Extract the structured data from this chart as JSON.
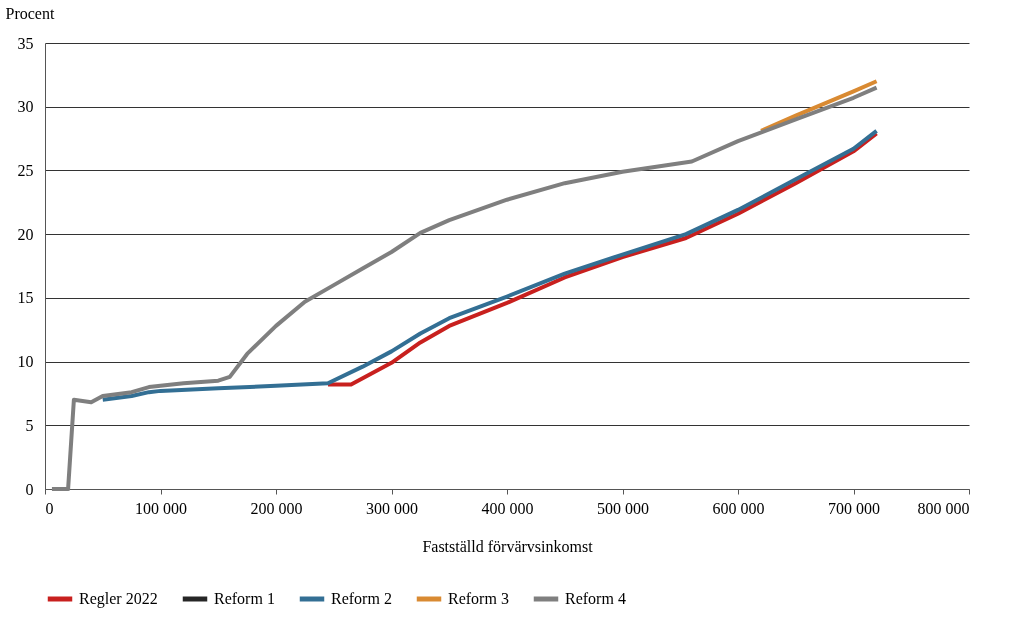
{
  "chart_data": {
    "type": "line",
    "ylabel": "Procent",
    "xlabel": "Fastställd förvärvsinkomst",
    "xlim": [
      0,
      800000
    ],
    "ylim": [
      0,
      35
    ],
    "xticks": [
      0,
      {
        "value": 100000,
        "label": "100 000"
      },
      {
        "value": 200000,
        "label": "200 000"
      },
      {
        "value": 300000,
        "label": "300 000"
      },
      {
        "value": 400000,
        "label": "400 000"
      },
      {
        "value": 500000,
        "label": "500 000"
      },
      {
        "value": 600000,
        "label": "600 000"
      },
      {
        "value": 700000,
        "label": "700 000"
      },
      {
        "value": 800000,
        "label": "800 000"
      }
    ],
    "yticks": [
      0,
      5,
      10,
      15,
      20,
      25,
      30,
      35
    ],
    "grid": "y",
    "legend": "bottom",
    "marker": "none",
    "line_style": "solid",
    "series": [
      {
        "name": "Regler 2022",
        "color": "#c8201e",
        "x": [
          245000,
          265000,
          300000,
          325000,
          350000,
          400000,
          450000,
          500000,
          555000,
          600000,
          650000,
          700000,
          720000
        ],
        "values": [
          8.2,
          8.2,
          9.9,
          11.5,
          12.8,
          14.6,
          16.6,
          18.2,
          19.7,
          21.6,
          24.0,
          26.5,
          27.9
        ]
      },
      {
        "name": "Reform 1",
        "color": "#262626"
      },
      {
        "name": "Reform 2",
        "color": "#336f94",
        "x": [
          50000,
          75000,
          90000,
          100000,
          150000,
          200000,
          245000,
          275000,
          300000,
          325000,
          350000,
          400000,
          450000,
          500000,
          555000,
          600000,
          650000,
          700000,
          720000
        ],
        "values": [
          7.0,
          7.3,
          7.6,
          7.7,
          7.9,
          8.1,
          8.3,
          9.6,
          10.8,
          12.2,
          13.4,
          15.1,
          16.9,
          18.4,
          20.0,
          21.9,
          24.3,
          26.7,
          28.1
        ]
      },
      {
        "name": "Reform 3",
        "color": "#d98a32",
        "x": [
          620000,
          650000,
          700000,
          720000
        ],
        "values": [
          28.1,
          29.3,
          31.2,
          32.0
        ]
      },
      {
        "name": "Reform 4",
        "color": "#7f7f7f",
        "x": [
          6000,
          20000,
          25000,
          40000,
          50000,
          75000,
          90000,
          100000,
          120000,
          150000,
          160000,
          175000,
          200000,
          225000,
          250000,
          275000,
          300000,
          325000,
          350000,
          400000,
          450000,
          500000,
          560000,
          600000,
          650000,
          700000,
          720000
        ],
        "values": [
          0,
          0,
          7.0,
          6.8,
          7.3,
          7.6,
          8.0,
          8.1,
          8.3,
          8.5,
          8.8,
          10.6,
          12.8,
          14.7,
          16.0,
          17.3,
          18.6,
          20.1,
          21.1,
          22.7,
          24.0,
          24.9,
          25.7,
          27.3,
          29.0,
          30.7,
          31.5
        ]
      }
    ]
  }
}
